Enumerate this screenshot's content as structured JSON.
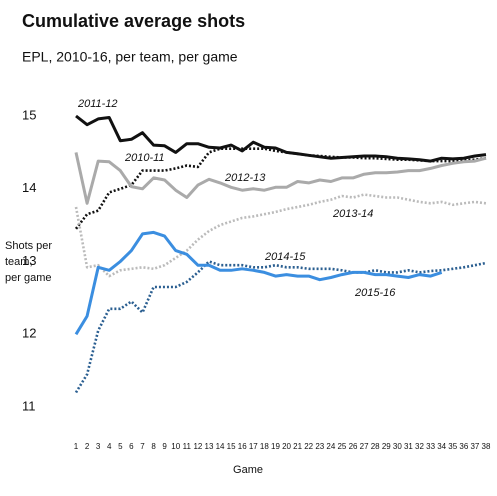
{
  "chart_data": {
    "type": "line",
    "title": "Cumulative average shots",
    "subtitle": "EPL, 2010-16, per team, per game",
    "y_label_lines": [
      "Shots per",
      "team,",
      "per game"
    ],
    "x_label": "Game",
    "x": [
      1,
      2,
      3,
      4,
      5,
      6,
      7,
      8,
      9,
      10,
      11,
      12,
      13,
      14,
      15,
      16,
      17,
      18,
      19,
      20,
      21,
      22,
      23,
      24,
      25,
      26,
      27,
      28,
      29,
      30,
      31,
      32,
      33,
      34,
      35,
      36,
      37,
      38
    ],
    "xlim": [
      1,
      38
    ],
    "xticks": [
      1,
      2,
      3,
      4,
      5,
      6,
      7,
      8,
      9,
      10,
      11,
      12,
      13,
      14,
      15,
      16,
      17,
      18,
      19,
      20,
      21,
      22,
      23,
      24,
      25,
      26,
      27,
      28,
      29,
      30,
      31,
      32,
      33,
      34,
      35,
      36,
      37,
      38
    ],
    "ylim": [
      10.8,
      15.4
    ],
    "yticks": [
      11,
      12,
      13,
      14,
      15
    ],
    "grid": false,
    "series": [
      {
        "name": "2010-11",
        "color": "#111111",
        "style": "dotted",
        "values": [
          13.45,
          13.65,
          13.7,
          13.95,
          14.0,
          14.05,
          14.25,
          14.25,
          14.25,
          14.28,
          14.32,
          14.3,
          14.5,
          14.55,
          14.55,
          14.55,
          14.55,
          14.55,
          14.52,
          14.5,
          14.48,
          14.46,
          14.45,
          14.44,
          14.43,
          14.43,
          14.42,
          14.42,
          14.41,
          14.4,
          14.4,
          14.39,
          14.38,
          14.38,
          14.38,
          14.39,
          14.4,
          14.42
        ]
      },
      {
        "name": "2011-12",
        "color": "#111111",
        "style": "solid",
        "values": [
          15.0,
          14.88,
          14.96,
          14.98,
          14.66,
          14.68,
          14.77,
          14.6,
          14.59,
          14.5,
          14.62,
          14.62,
          14.57,
          14.56,
          14.6,
          14.52,
          14.64,
          14.57,
          14.56,
          14.5,
          14.48,
          14.46,
          14.44,
          14.42,
          14.43,
          14.44,
          14.45,
          14.45,
          14.44,
          14.42,
          14.41,
          14.4,
          14.38,
          14.42,
          14.41,
          14.42,
          14.45,
          14.47
        ]
      },
      {
        "name": "2012-13",
        "color": "#aaaaaa",
        "style": "solid",
        "values": [
          14.5,
          13.8,
          14.38,
          14.37,
          14.25,
          14.03,
          14.0,
          14.15,
          14.12,
          13.98,
          13.88,
          14.05,
          14.13,
          14.08,
          14.02,
          13.98,
          14.0,
          13.98,
          14.02,
          14.02,
          14.1,
          14.08,
          14.12,
          14.1,
          14.15,
          14.15,
          14.2,
          14.22,
          14.22,
          14.23,
          14.25,
          14.25,
          14.28,
          14.32,
          14.35,
          14.37,
          14.38,
          14.42
        ]
      },
      {
        "name": "2013-14",
        "color": "#bbbbbb",
        "style": "dotted",
        "values": [
          13.75,
          12.92,
          12.95,
          12.8,
          12.88,
          12.9,
          12.92,
          12.9,
          12.95,
          13.05,
          13.15,
          13.3,
          13.42,
          13.5,
          13.55,
          13.6,
          13.62,
          13.65,
          13.68,
          13.72,
          13.75,
          13.78,
          13.82,
          13.85,
          13.9,
          13.88,
          13.92,
          13.9,
          13.88,
          13.88,
          13.85,
          13.82,
          13.8,
          13.82,
          13.78,
          13.8,
          13.82,
          13.8
        ]
      },
      {
        "name": "2014-15",
        "color": "#2b5f91",
        "style": "dotted",
        "values": [
          11.2,
          11.45,
          12.05,
          12.35,
          12.35,
          12.45,
          12.3,
          12.65,
          12.65,
          12.65,
          12.72,
          12.85,
          13.0,
          12.95,
          12.95,
          12.95,
          12.92,
          12.92,
          12.95,
          12.92,
          12.92,
          12.9,
          12.9,
          12.9,
          12.88,
          12.85,
          12.85,
          12.88,
          12.85,
          12.85,
          12.88,
          12.85,
          12.87,
          12.88,
          12.9,
          12.92,
          12.95,
          12.98
        ]
      },
      {
        "name": "2015-16",
        "color": "#3b8ee0",
        "style": "solid",
        "values": [
          12.0,
          12.25,
          12.92,
          12.88,
          13.0,
          13.15,
          13.38,
          13.4,
          13.35,
          13.15,
          13.1,
          12.95,
          12.95,
          12.88,
          12.88,
          12.9,
          12.88,
          12.85,
          12.8,
          12.82,
          12.8,
          12.8,
          12.75,
          12.78,
          12.82,
          12.85,
          12.85,
          12.82,
          12.82,
          12.8,
          12.78,
          12.82,
          12.8,
          12.85,
          null,
          null,
          null,
          null
        ]
      }
    ]
  }
}
